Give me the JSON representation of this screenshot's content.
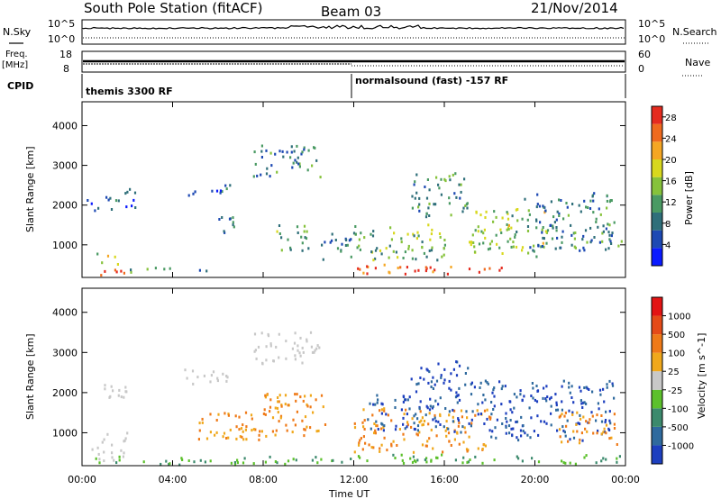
{
  "header": {
    "station": "South Pole Station (fitACF)",
    "beam": "Beam 03",
    "date": "21/Nov/2014"
  },
  "panels": {
    "nsky_label": "N.Sky",
    "nsearch_label": "N.Search",
    "freq_label_1": "Freq.",
    "freq_label_2": "[MHz]",
    "nave_label": "Nave",
    "cpid_label": "CPID",
    "cpid_segments": [
      "themis 3300 RF",
      "normalsound (fast) -157 RF"
    ],
    "nsky_ticks": [
      "10^5",
      "10^0"
    ],
    "nsearch_ticks": [
      "10^5",
      "10^0"
    ],
    "freq_ticks": [
      "18",
      "8"
    ],
    "nave_ticks": [
      "60",
      "0"
    ]
  },
  "chart_data": [
    {
      "type": "heatmap",
      "name": "Power",
      "title": "",
      "xlabel": "Time UT",
      "ylabel": "Slant Range [km]",
      "x_ticks": [
        "00:00",
        "04:00",
        "08:00",
        "12:00",
        "16:00",
        "20:00",
        "00:00"
      ],
      "y_ticks": [
        1000,
        2000,
        3000,
        4000
      ],
      "ylim": [
        180,
        4600
      ],
      "colorbar": {
        "label": "Power [dB]",
        "ticks": [
          4,
          8,
          12,
          16,
          20,
          24,
          28
        ],
        "range": [
          0,
          30
        ],
        "colors": [
          "#0a1aff",
          "#1d49b3",
          "#2f6f7a",
          "#4a9a63",
          "#86c23b",
          "#d8d81e",
          "#f5a623",
          "#ef6a1e",
          "#e52b1f"
        ]
      },
      "echo_regions": [
        {
          "t": [
            0.2,
            1.5
          ],
          "r": [
            1800,
            2200
          ],
          "level": 0.2
        },
        {
          "t": [
            0.8,
            2.0
          ],
          "r": [
            220,
            500
          ],
          "level": 0.85
        },
        {
          "t": [
            0.6,
            1.6
          ],
          "r": [
            500,
            800
          ],
          "level": 0.6
        },
        {
          "t": [
            2.0,
            5.5
          ],
          "r": [
            300,
            420
          ],
          "level": 0.35
        },
        {
          "t": [
            1.5,
            2.5
          ],
          "r": [
            1900,
            2400
          ],
          "level": 0.2
        },
        {
          "t": [
            4.5,
            6.5
          ],
          "r": [
            2200,
            2500
          ],
          "level": 0.2
        },
        {
          "t": [
            6.0,
            6.8
          ],
          "r": [
            1000,
            1700
          ],
          "level": 0.25
        },
        {
          "t": [
            7.5,
            10.5
          ],
          "r": [
            2700,
            3500
          ],
          "level": 0.3
        },
        {
          "t": [
            8.5,
            10.0
          ],
          "r": [
            800,
            1500
          ],
          "level": 0.4
        },
        {
          "t": [
            10.5,
            12.0
          ],
          "r": [
            600,
            1300
          ],
          "level": 0.3
        },
        {
          "t": [
            12.0,
            16.0
          ],
          "r": [
            600,
            1500
          ],
          "level": 0.45
        },
        {
          "t": [
            12.0,
            18.5
          ],
          "r": [
            250,
            500
          ],
          "level": 0.85
        },
        {
          "t": [
            14.5,
            17.0
          ],
          "r": [
            1700,
            2800
          ],
          "level": 0.35
        },
        {
          "t": [
            17.0,
            20.5
          ],
          "r": [
            700,
            1900
          ],
          "level": 0.5
        },
        {
          "t": [
            19.5,
            23.8
          ],
          "r": [
            800,
            2300
          ],
          "level": 0.3
        }
      ]
    },
    {
      "type": "heatmap",
      "name": "Velocity",
      "title": "",
      "xlabel": "Time UT",
      "ylabel": "Slant Range [km]",
      "x_ticks": [
        "00:00",
        "04:00",
        "08:00",
        "12:00",
        "16:00",
        "20:00",
        "00:00"
      ],
      "y_ticks": [
        1000,
        2000,
        3000,
        4000
      ],
      "ylim": [
        180,
        4600
      ],
      "colorbar": {
        "label": "Velocity [m s^-1]",
        "ticks": [
          "1000",
          "500",
          "100",
          "25",
          "-25",
          "-100",
          "-500",
          "-1000"
        ],
        "colors": [
          "#1d3fbf",
          "#2f6a9e",
          "#3c8a6d",
          "#5cc02c",
          "#c8c8c8",
          "#f0a81c",
          "#ef7a18",
          "#e54b18",
          "#e31414"
        ]
      },
      "echo_regions": [
        {
          "t": [
            0.2,
            2.0
          ],
          "r": [
            1800,
            2200
          ],
          "vel": "grey"
        },
        {
          "t": [
            0.4,
            2.0
          ],
          "r": [
            300,
            1000
          ],
          "vel": "grey"
        },
        {
          "t": [
            0.5,
            12.0
          ],
          "r": [
            200,
            400
          ],
          "vel": "green"
        },
        {
          "t": [
            4.5,
            6.5
          ],
          "r": [
            2200,
            2600
          ],
          "vel": "grey"
        },
        {
          "t": [
            7.5,
            10.5
          ],
          "r": [
            2700,
            3500
          ],
          "vel": "grey"
        },
        {
          "t": [
            4.5,
            8.0
          ],
          "r": [
            800,
            1500
          ],
          "vel": "orange"
        },
        {
          "t": [
            8.0,
            11.0
          ],
          "r": [
            900,
            2000
          ],
          "vel": "orange"
        },
        {
          "t": [
            12.0,
            24.0
          ],
          "r": [
            220,
            450
          ],
          "vel": "green"
        },
        {
          "t": [
            12.0,
            18.0
          ],
          "r": [
            500,
            1600
          ],
          "vel": "orange"
        },
        {
          "t": [
            12.5,
            17.0
          ],
          "r": [
            1000,
            2000
          ],
          "vel": "blue"
        },
        {
          "t": [
            14.5,
            17.0
          ],
          "r": [
            2000,
            2800
          ],
          "vel": "blue"
        },
        {
          "t": [
            17.0,
            23.5
          ],
          "r": [
            800,
            2300
          ],
          "vel": "blue"
        },
        {
          "t": [
            21.0,
            23.8
          ],
          "r": [
            700,
            1500
          ],
          "vel": "orange"
        }
      ]
    }
  ]
}
